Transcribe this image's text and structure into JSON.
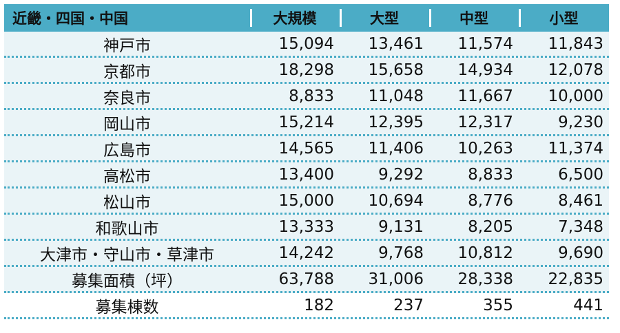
{
  "table": {
    "headers": [
      "近畿・四国・中国",
      "大規模",
      "大型",
      "中型",
      "小型"
    ],
    "rows": [
      [
        "神戸市",
        "15,094",
        "13,461",
        "11,574",
        "11,843"
      ],
      [
        "京都市",
        "18,298",
        "15,658",
        "14,934",
        "12,078"
      ],
      [
        "奈良市",
        "8,833",
        "11,048",
        "11,667",
        "10,000"
      ],
      [
        "岡山市",
        "15,214",
        "12,395",
        "12,317",
        "9,230"
      ],
      [
        "広島市",
        "14,565",
        "11,406",
        "10,263",
        "11,374"
      ],
      [
        "高松市",
        "13,400",
        "9,292",
        "8,833",
        "6,500"
      ],
      [
        "松山市",
        "15,000",
        "10,694",
        "8,776",
        "8,461"
      ],
      [
        "和歌山市",
        "13,333",
        "9,131",
        "8,205",
        "7,348"
      ],
      [
        "大津市・守山市・草津市",
        "14,242",
        "9,768",
        "10,812",
        "9,690"
      ],
      [
        "募集面積（坪）",
        "63,788",
        "31,006",
        "28,338",
        "22,835"
      ],
      [
        "募集棟数",
        "182",
        "237",
        "355",
        "441"
      ]
    ]
  },
  "colors": {
    "header_bg": "#4bacc6",
    "row_bg": "#eaf4f7",
    "divider": "#4bacc6"
  }
}
